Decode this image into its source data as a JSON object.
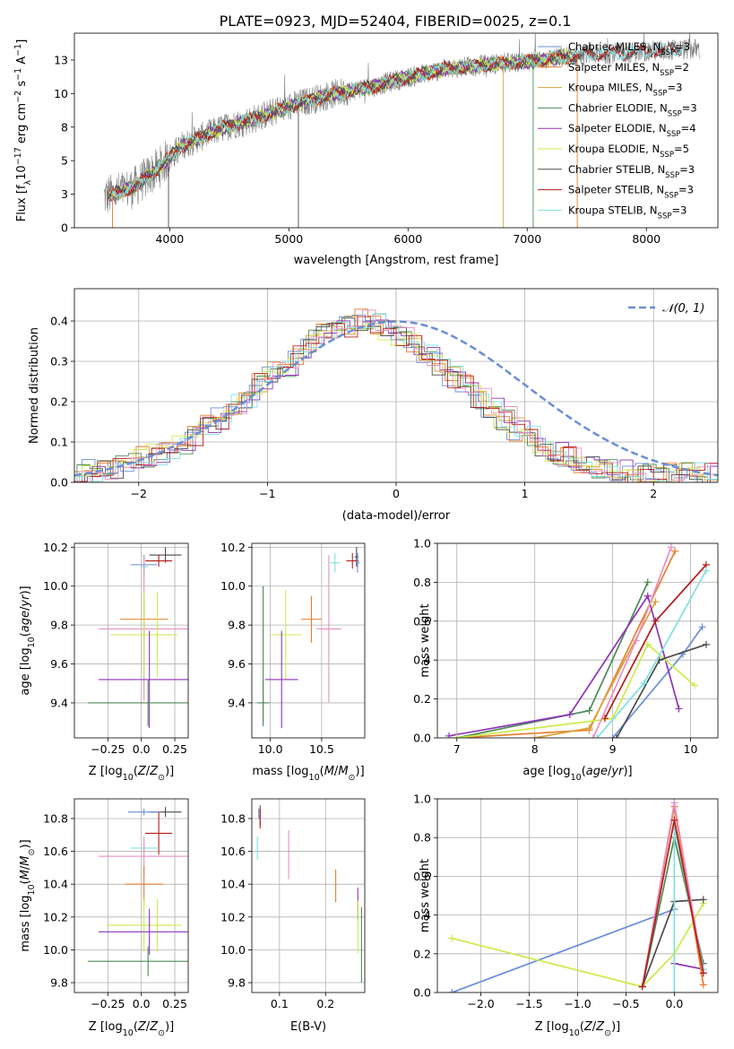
{
  "figure_title": "PLATE=0923, MJD=52404, FIBERID=0025, z=0.1",
  "colors": {
    "Chabrier MILES": "#6a8fd6",
    "Salpeter MILES": "#e87e2e",
    "Kroupa MILES": "#d9a23a",
    "Chabrier ELODIE": "#4c8a58",
    "Salpeter ELODIE": "#8e33b8",
    "Kroupa ELODIE": "#cdea4a",
    "Chabrier STELIB": "#4a4a4a",
    "Salpeter STELIB": "#b51d1d",
    "Kroupa STELIB": "#80e0e0",
    "pink": "#e98fc4",
    "data": "#808080"
  },
  "chart_data": [
    {
      "type": "line",
      "panel": "spectrum",
      "xlabel": "wavelength [Angstrom, rest frame]",
      "ylabel_parts": [
        "Flux [f",
        "λ",
        "10",
        "−17",
        " erg cm",
        "−2",
        " s",
        "−1",
        " A",
        "−1",
        "]"
      ],
      "xlim": [
        3200,
        8600
      ],
      "ylim": [
        0,
        14.5
      ],
      "xticks": [
        4000,
        5000,
        6000,
        7000,
        8000
      ],
      "yticks": [
        0.0,
        2.5,
        5.0,
        7.5,
        10.0,
        12.5
      ],
      "legend": [
        {
          "label": "Chabrier MILES",
          "n": "3"
        },
        {
          "label": "Salpeter MILES",
          "n": "2"
        },
        {
          "label": "Kroupa MILES",
          "n": "3"
        },
        {
          "label": "Chabrier ELODIE",
          "n": "3"
        },
        {
          "label": "Salpeter ELODIE",
          "n": "4"
        },
        {
          "label": "Kroupa ELODIE",
          "n": "5"
        },
        {
          "label": "Chabrier STELIB",
          "n": "3"
        },
        {
          "label": "Salpeter STELIB",
          "n": "3"
        },
        {
          "label": "Kroupa STELIB",
          "n": "3"
        }
      ],
      "legend_n_label": "N",
      "legend_n_sub": "SSP",
      "model_continuum": {
        "x": [
          3500,
          3700,
          3900,
          4100,
          4300,
          4500,
          4700,
          4900,
          5100,
          5300,
          5500,
          5700,
          5900,
          6100,
          6300,
          6500,
          6700,
          6900,
          7100,
          7300,
          7400
        ],
        "y": [
          2.3,
          3.0,
          4.4,
          6.1,
          6.9,
          7.6,
          8.1,
          8.7,
          9.3,
          9.8,
          10.2,
          10.5,
          11.0,
          11.4,
          11.8,
          12.0,
          12.2,
          12.3,
          12.5,
          12.7,
          12.8
        ]
      },
      "data_continuum": {
        "x": [
          3450,
          3700,
          3900,
          4100,
          4300,
          4500,
          4700,
          4900,
          5100,
          5300,
          5500,
          5700,
          5900,
          6100,
          6300,
          6500,
          6700,
          6900,
          7100,
          7300,
          7500,
          7700,
          7900,
          8100,
          8300,
          8450
        ],
        "y": [
          2.3,
          3.0,
          4.4,
          6.1,
          6.9,
          7.6,
          8.1,
          8.7,
          9.3,
          9.8,
          10.2,
          10.5,
          11.0,
          11.4,
          11.8,
          12.0,
          12.2,
          12.3,
          12.5,
          12.7,
          12.9,
          13.0,
          13.1,
          13.2,
          13.3,
          13.3
        ]
      },
      "notes": [
        "vertical drop lines near 6800, 7050, 7420 Angstrom"
      ]
    },
    {
      "type": "histogram",
      "panel": "residuals",
      "xlabel": "(data-model)/error",
      "ylabel": "Normed distribution",
      "xlim": [
        -2.5,
        2.5
      ],
      "ylim": [
        0,
        0.48
      ],
      "xticks": [
        -2,
        -1,
        0,
        1,
        2
      ],
      "yticks": [
        0.0,
        0.1,
        0.2,
        0.3,
        0.4
      ],
      "legend": "𝒩(0, 1)",
      "bin_width": 0.1,
      "approx_bin_values": [
        0.02,
        0.03,
        0.03,
        0.04,
        0.05,
        0.06,
        0.07,
        0.08,
        0.1,
        0.12,
        0.14,
        0.16,
        0.19,
        0.21,
        0.24,
        0.27,
        0.29,
        0.32,
        0.35,
        0.37,
        0.38,
        0.39,
        0.4,
        0.39,
        0.38,
        0.36,
        0.34,
        0.32,
        0.29,
        0.26,
        0.24,
        0.21,
        0.18,
        0.16,
        0.13,
        0.11,
        0.09,
        0.07,
        0.06,
        0.05,
        0.04,
        0.03,
        0.03,
        0.02,
        0.02,
        0.02,
        0.02,
        0.02,
        0.02,
        0.02
      ]
    },
    {
      "type": "errorbar",
      "panel": "age-vs-Z",
      "xlabel": "Z [log10(Z/Z⊙)]",
      "ylabel": "age [log10(age/yr)]",
      "xlim": [
        -0.5,
        0.35
      ],
      "ylim": [
        9.22,
        10.22
      ],
      "xticks": [
        -0.25,
        0.0,
        0.25
      ],
      "yticks": [
        9.4,
        9.6,
        9.8,
        10.0,
        10.2
      ],
      "points": [
        {
          "s": "Chabrier STELIB",
          "x": 0.18,
          "y": 10.16,
          "xe": 0.12,
          "ye": 0.04
        },
        {
          "s": "Salpeter STELIB",
          "x": 0.13,
          "y": 10.13,
          "xe": 0.1,
          "ye": 0.03
        },
        {
          "s": "Chabrier MILES",
          "x": 0.02,
          "y": 10.11,
          "xe": 0.1,
          "ye": 0.05
        },
        {
          "s": "Kroupa STELIB",
          "x": 0.02,
          "y": 10.1,
          "xe": 0.03,
          "ye": 0.05
        },
        {
          "s": "Salpeter MILES",
          "x": 0.02,
          "y": 9.83,
          "xe": 0.18,
          "ye": 0.12
        },
        {
          "s": "pink",
          "x": 0.02,
          "y": 9.78,
          "xe": 0.34,
          "ye": 0.37
        },
        {
          "s": "Kroupa ELODIE",
          "x": 0.02,
          "y": 9.75,
          "xe": 0.25,
          "ye": 0.22
        },
        {
          "s": "Kroupa ELODIE",
          "x": 0.12,
          "y": 9.75,
          "xe": 0.05,
          "ye": 0.22
        },
        {
          "s": "Salpeter ELODIE",
          "x": 0.06,
          "y": 9.52,
          "xe": 0.38,
          "ye": 0.25
        },
        {
          "s": "Chabrier ELODIE",
          "x": 0.05,
          "y": 9.4,
          "xe": 0.45,
          "ye": 0.12
        }
      ]
    },
    {
      "type": "errorbar",
      "panel": "age-vs-mass",
      "xlabel": "mass [log10(M/M⊙)]",
      "ylabel": "",
      "xlim": [
        9.82,
        10.92
      ],
      "ylim": [
        9.22,
        10.22
      ],
      "xticks": [
        10.0,
        10.5
      ],
      "yticks": [
        9.4,
        9.6,
        9.8,
        10.0,
        10.2
      ],
      "points": [
        {
          "s": "Chabrier STELIB",
          "x": 10.84,
          "y": 10.15,
          "xe": 0.02,
          "ye": 0.05
        },
        {
          "s": "Salpeter STELIB",
          "x": 10.8,
          "y": 10.13,
          "xe": 0.06,
          "ye": 0.04
        },
        {
          "s": "Chabrier MILES",
          "x": 10.85,
          "y": 10.12,
          "xe": 0.02,
          "ye": 0.05
        },
        {
          "s": "Kroupa STELIB",
          "x": 10.63,
          "y": 10.12,
          "xe": 0.05,
          "ye": 0.05
        },
        {
          "s": "Salpeter MILES",
          "x": 10.4,
          "y": 9.83,
          "xe": 0.1,
          "ye": 0.12
        },
        {
          "s": "pink",
          "x": 10.57,
          "y": 9.78,
          "xe": 0.12,
          "ye": 0.38
        },
        {
          "s": "Kroupa ELODIE",
          "x": 10.15,
          "y": 9.75,
          "xe": 0.15,
          "ye": 0.23
        },
        {
          "s": "Salpeter ELODIE",
          "x": 10.11,
          "y": 9.52,
          "xe": 0.16,
          "ye": 0.25
        },
        {
          "s": "Chabrier ELODIE",
          "x": 9.93,
          "y": 9.4,
          "xe": 0.06,
          "ye": 0.12
        },
        {
          "s": "Chabrier ELODIE",
          "x": 9.93,
          "y": 9.65,
          "xe": 0.0,
          "ye": 0.35
        }
      ]
    },
    {
      "type": "line",
      "panel": "weight-vs-age",
      "xlabel": "age [log10(age/yr)]",
      "ylabel": "mass weight",
      "xlim": [
        6.75,
        10.35
      ],
      "ylim": [
        0,
        1.0
      ],
      "xticks": [
        7,
        8,
        9,
        10
      ],
      "yticks": [
        0.0,
        0.2,
        0.4,
        0.6,
        0.8,
        1.0
      ],
      "series": [
        {
          "s": "Chabrier MILES",
          "x": [
            9.0,
            9.9,
            10.15
          ],
          "y": [
            0.0,
            0.43,
            0.57
          ]
        },
        {
          "s": "Salpeter MILES",
          "x": [
            7.0,
            8.7,
            9.8
          ],
          "y": [
            0.0,
            0.04,
            0.96
          ]
        },
        {
          "s": "Kroupa MILES",
          "x": [
            8.0,
            8.7,
            9.55
          ],
          "y": [
            0.0,
            0.05,
            0.7
          ]
        },
        {
          "s": "Chabrier ELODIE",
          "x": [
            7.0,
            8.7,
            9.45
          ],
          "y": [
            0.0,
            0.14,
            0.8
          ]
        },
        {
          "s": "Salpeter ELODIE",
          "x": [
            6.9,
            8.45,
            9.45,
            9.85
          ],
          "y": [
            0.01,
            0.12,
            0.73,
            0.15
          ]
        },
        {
          "s": "Kroupa ELODIE",
          "x": [
            7.0,
            9.0,
            9.45,
            10.05
          ],
          "y": [
            0.0,
            0.1,
            0.48,
            0.27
          ]
        },
        {
          "s": "Chabrier STELIB",
          "x": [
            9.05,
            9.6,
            10.2
          ],
          "y": [
            0.0,
            0.4,
            0.48
          ]
        },
        {
          "s": "Salpeter STELIB",
          "x": [
            8.9,
            9.55,
            10.2
          ],
          "y": [
            0.1,
            0.6,
            0.89
          ]
        },
        {
          "s": "Kroupa STELIB",
          "x": [
            8.8,
            9.4,
            10.2
          ],
          "y": [
            0.0,
            0.28,
            0.86
          ]
        },
        {
          "s": "pink",
          "x": [
            8.75,
            9.3,
            9.75
          ],
          "y": [
            0.0,
            0.5,
            0.98
          ]
        }
      ]
    },
    {
      "type": "errorbar",
      "panel": "mass-vs-Z",
      "xlabel": "Z [log10(Z/Z⊙)]",
      "ylabel": "mass [log10(M/M⊙)]",
      "xlim": [
        -0.5,
        0.35
      ],
      "ylim": [
        9.74,
        10.92
      ],
      "xticks": [
        -0.25,
        0.0,
        0.25
      ],
      "yticks": [
        9.8,
        10.0,
        10.2,
        10.4,
        10.6,
        10.8
      ],
      "points": [
        {
          "s": "Chabrier STELIB",
          "x": 0.18,
          "y": 10.84,
          "xe": 0.12,
          "ye": 0.03
        },
        {
          "s": "Chabrier MILES",
          "x": 0.02,
          "y": 10.84,
          "xe": 0.12,
          "ye": 0.02
        },
        {
          "s": "Salpeter STELIB",
          "x": 0.13,
          "y": 10.71,
          "xe": 0.1,
          "ye": 0.13
        },
        {
          "s": "Kroupa STELIB",
          "x": 0.02,
          "y": 10.62,
          "xe": 0.1,
          "ye": 0.03
        },
        {
          "s": "pink",
          "x": 0.02,
          "y": 10.57,
          "xe": 0.34,
          "ye": 0.12
        },
        {
          "s": "Salpeter MILES",
          "x": 0.02,
          "y": 10.4,
          "xe": 0.14,
          "ye": 0.11
        },
        {
          "s": "Kroupa ELODIE",
          "x": 0.02,
          "y": 10.15,
          "xe": 0.28,
          "ye": 0.16
        },
        {
          "s": "Kroupa ELODIE",
          "x": 0.12,
          "y": 10.15,
          "xe": 0.0,
          "ye": 0.16
        },
        {
          "s": "Salpeter ELODIE",
          "x": 0.06,
          "y": 10.11,
          "xe": 0.38,
          "ye": 0.14
        },
        {
          "s": "Chabrier ELODIE",
          "x": 0.05,
          "y": 9.93,
          "xe": 0.45,
          "ye": 0.09
        }
      ]
    },
    {
      "type": "errorbar",
      "panel": "mass-vs-EBV",
      "xlabel": "E(B-V)",
      "ylabel": "",
      "xlim": [
        0.04,
        0.285
      ],
      "ylim": [
        9.74,
        10.92
      ],
      "xticks": [
        0.1,
        0.2
      ],
      "yticks": [
        9.8,
        10.0,
        10.2,
        10.4,
        10.6,
        10.8
      ],
      "points": [
        {
          "s": "Chabrier MILES",
          "x": 0.055,
          "y": 10.83,
          "ye": 0.03
        },
        {
          "s": "Chabrier STELIB",
          "x": 0.058,
          "y": 10.82,
          "ye": 0.06
        },
        {
          "s": "Salpeter STELIB",
          "x": 0.058,
          "y": 10.8,
          "ye": 0.06
        },
        {
          "s": "Kroupa STELIB",
          "x": 0.052,
          "y": 10.62,
          "ye": 0.07
        },
        {
          "s": "pink",
          "x": 0.12,
          "y": 10.58,
          "ye": 0.15
        },
        {
          "s": "Salpeter MILES",
          "x": 0.222,
          "y": 10.39,
          "ye": 0.1
        },
        {
          "s": "Salpeter ELODIE",
          "x": 0.27,
          "y": 10.28,
          "ye": 0.1
        },
        {
          "s": "Kroupa ELODIE",
          "x": 0.27,
          "y": 10.14,
          "ye": 0.16
        },
        {
          "s": "Chabrier ELODIE",
          "x": 0.278,
          "y": 10.03,
          "ye": 0.23
        }
      ]
    },
    {
      "type": "line",
      "panel": "weight-vs-Z",
      "xlabel": "Z [log10(Z/Z⊙)]",
      "ylabel": "mass weight",
      "xlim": [
        -2.45,
        0.45
      ],
      "ylim": [
        0,
        1.0
      ],
      "xticks": [
        -2.0,
        -1.5,
        -1.0,
        -0.5,
        0.0
      ],
      "yticks": [
        0.0,
        0.2,
        0.4,
        0.6,
        0.8,
        1.0
      ],
      "series": [
        {
          "s": "Chabrier MILES",
          "x": [
            -2.3,
            0.0
          ],
          "y": [
            0.0,
            0.43
          ]
        },
        {
          "s": "Kroupa ELODIE",
          "x": [
            -2.3,
            -0.33,
            0.0,
            0.3
          ],
          "y": [
            0.28,
            0.03,
            0.2,
            0.46
          ]
        },
        {
          "s": "Chabrier STELIB",
          "x": [
            -0.33,
            0.0,
            0.3
          ],
          "y": [
            0.03,
            0.47,
            0.48
          ]
        },
        {
          "s": "Salpeter ELODIE",
          "x": [
            0.0,
            0.3
          ],
          "y": [
            0.15,
            0.12
          ]
        },
        {
          "s": "Chabrier ELODIE",
          "x": [
            -0.33,
            0.0,
            0.3
          ],
          "y": [
            0.03,
            0.8,
            0.15
          ]
        },
        {
          "s": "Kroupa STELIB",
          "x": [
            0.0,
            0.0,
            0.3
          ],
          "y": [
            0.0,
            0.86,
            0.12
          ]
        },
        {
          "s": "Salpeter MILES",
          "x": [
            -0.33,
            0.0,
            0.3
          ],
          "y": [
            0.03,
            0.96,
            0.04
          ]
        },
        {
          "s": "pink",
          "x": [
            -0.33,
            0.0,
            0.3
          ],
          "y": [
            0.03,
            0.98,
            0.1
          ]
        },
        {
          "s": "Salpeter STELIB",
          "x": [
            -0.33,
            0.0,
            0.3
          ],
          "y": [
            0.03,
            0.89,
            0.1
          ]
        }
      ]
    }
  ]
}
